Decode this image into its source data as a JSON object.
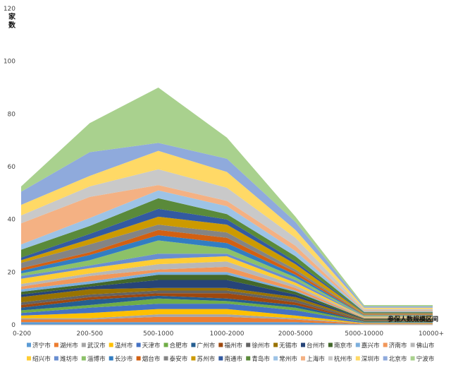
{
  "chart_data": {
    "type": "area",
    "stacked": true,
    "ylabel": "家\n数",
    "xlabel": "参保人数规模区间",
    "categories": [
      "0-200",
      "200-500",
      "500-1000",
      "1000-2000",
      "2000-5000",
      "5000-10000",
      "10000+"
    ],
    "ylim": [
      0,
      120
    ],
    "yticks": [
      0,
      20,
      40,
      60,
      80,
      100,
      120
    ],
    "grid": false,
    "legend_position": "bottom",
    "series": [
      {
        "name": "济宁市",
        "color": "#5B9BD5",
        "values": [
          1,
          1,
          1,
          1,
          1,
          0.2,
          0.2
        ]
      },
      {
        "name": "湖州市",
        "color": "#ED7D31",
        "values": [
          1,
          1,
          2,
          2,
          1,
          0.2,
          0.2
        ]
      },
      {
        "name": "武汉市",
        "color": "#A5A5A5",
        "values": [
          0.5,
          0.5,
          1,
          1,
          0.5,
          0.1,
          0.1
        ]
      },
      {
        "name": "温州市",
        "color": "#FFC000",
        "values": [
          1,
          2,
          2,
          2,
          1,
          0.2,
          0.2
        ]
      },
      {
        "name": "天津市",
        "color": "#4472C4",
        "values": [
          1,
          2,
          2,
          2,
          2,
          0.3,
          0.3
        ]
      },
      {
        "name": "合肥市",
        "color": "#70AD47",
        "values": [
          1,
          1,
          2,
          1,
          1,
          0.2,
          0.2
        ]
      },
      {
        "name": "广州市",
        "color": "#255E91",
        "values": [
          1,
          2,
          1,
          1,
          1,
          0.2,
          0.2
        ]
      },
      {
        "name": "福州市",
        "color": "#9E480E",
        "values": [
          1,
          1,
          1,
          2,
          1,
          0.2,
          0.2
        ]
      },
      {
        "name": "徐州市",
        "color": "#636363",
        "values": [
          1,
          1,
          1,
          1,
          1,
          0.2,
          0.2
        ]
      },
      {
        "name": "无锡市",
        "color": "#997300",
        "values": [
          2,
          2,
          1,
          1,
          1,
          0.2,
          0.2
        ]
      },
      {
        "name": "台州市",
        "color": "#264478",
        "values": [
          1,
          1,
          3,
          3,
          1,
          0.2,
          0.2
        ]
      },
      {
        "name": "南京市",
        "color": "#43682B",
        "values": [
          1,
          1,
          2,
          2,
          1,
          0.2,
          0.2
        ]
      },
      {
        "name": "嘉兴市",
        "color": "#7CAFDD",
        "values": [
          1,
          1,
          1,
          1,
          0.5,
          0.1,
          0.1
        ]
      },
      {
        "name": "济南市",
        "color": "#F1975A",
        "values": [
          1,
          2,
          1,
          2,
          1,
          0.2,
          0.2
        ]
      },
      {
        "name": "佛山市",
        "color": "#B7B7B7",
        "values": [
          1,
          1,
          2,
          2,
          1,
          0.2,
          0.2
        ]
      },
      {
        "name": "绍兴市",
        "color": "#FFCD33",
        "values": [
          2,
          2,
          2,
          2,
          1,
          0.2,
          0.2
        ]
      },
      {
        "name": "潍坊市",
        "color": "#698ED0",
        "values": [
          1,
          1,
          2,
          1,
          1,
          0.2,
          0.2
        ]
      },
      {
        "name": "淄博市",
        "color": "#8CC168",
        "values": [
          1,
          2,
          5,
          2,
          1,
          0.2,
          0.2
        ]
      },
      {
        "name": "长沙市",
        "color": "#327DC2",
        "values": [
          1,
          2,
          2,
          2,
          1,
          0.2,
          0.2
        ]
      },
      {
        "name": "烟台市",
        "color": "#D26012",
        "values": [
          1,
          1,
          2,
          2,
          1,
          0.2,
          0.2
        ]
      },
      {
        "name": "泰安市",
        "color": "#848484",
        "values": [
          2,
          3,
          2,
          2,
          1,
          0.2,
          0.2
        ]
      },
      {
        "name": "苏州市",
        "color": "#CC9A00",
        "values": [
          1,
          2,
          3,
          3,
          2,
          0.3,
          0.3
        ]
      },
      {
        "name": "南通市",
        "color": "#335AA1",
        "values": [
          1,
          2,
          3,
          2,
          1,
          0.2,
          0.2
        ]
      },
      {
        "name": "青岛市",
        "color": "#5A8A3A",
        "values": [
          3,
          3,
          4,
          2,
          2,
          0.3,
          0.3
        ]
      },
      {
        "name": "常州市",
        "color": "#9DC3E6",
        "values": [
          2,
          3,
          3,
          3,
          2,
          0.3,
          0.3
        ]
      },
      {
        "name": "上海市",
        "color": "#F4B183",
        "values": [
          8,
          8,
          2,
          2,
          2,
          0.3,
          0.3
        ]
      },
      {
        "name": "杭州市",
        "color": "#C9C9C9",
        "values": [
          3,
          4,
          6,
          5,
          3,
          0.5,
          0.5
        ]
      },
      {
        "name": "深圳市",
        "color": "#FFD966",
        "values": [
          4,
          4,
          7,
          6,
          3,
          0.5,
          0.5
        ]
      },
      {
        "name": "北京市",
        "color": "#8FAADC",
        "values": [
          5,
          9,
          3,
          5,
          3,
          0.5,
          0.5
        ]
      },
      {
        "name": "宁波市",
        "color": "#A9D18E",
        "values": [
          2,
          11,
          21,
          8,
          2,
          0.5,
          0.5
        ]
      }
    ]
  }
}
